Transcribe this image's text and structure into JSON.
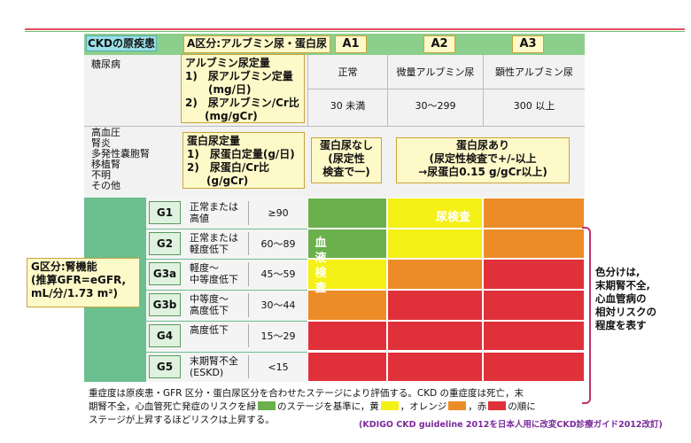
{
  "header": {
    "cause_label": "CKDの原疾患",
    "a_category_label": "A区分:アルブミン尿・蛋白尿",
    "a_keys": [
      "A1",
      "A2",
      "A3"
    ]
  },
  "diabetes": {
    "disease": "糖尿病",
    "box": {
      "title": "アルブミン尿定量",
      "line1": "1)　尿アルブミン定量",
      "line1b": "(mg/日)",
      "line2": "2)　尿アルブミン/Cr比",
      "line2b": "(mg/gCr)"
    },
    "a_labels": [
      "正常",
      "微量アルブミン尿",
      "顕性アルブミン尿"
    ],
    "a_values": [
      "30 未満",
      "30〜299",
      "300 以上"
    ]
  },
  "other": {
    "diseases": [
      "高血圧",
      "腎炎",
      "多発性嚢胞腎",
      "移植腎",
      "不明",
      "その他"
    ],
    "box": {
      "title": "蛋白尿定量",
      "line1": "1)　尿蛋白定量(g/日)",
      "line2": "2)　尿蛋白/Cr比",
      "line2b": "(g/gCr)"
    },
    "none_box": {
      "line1": "蛋白尿なし",
      "line2": "(尿定性",
      "line3": "検査で一)"
    },
    "present_box": {
      "line1": "蛋白尿あり",
      "line2": "(尿定性検査で+/-以上",
      "line3": "→尿蛋白0.15 g/gCr以上)"
    }
  },
  "gfr_label": {
    "line1": "G区分:腎機能",
    "line2": "(推算GFR=eGFR,",
    "line3": "mL/分/1.73 m²)"
  },
  "g_rows": [
    {
      "key": "G1",
      "desc1": "正常または",
      "desc2": "高値",
      "range": "≥90",
      "colors": [
        "green",
        "yellow",
        "orange"
      ]
    },
    {
      "key": "G2",
      "desc1": "正常または",
      "desc2": "軽度低下",
      "range": "60〜89",
      "colors": [
        "green",
        "yellow",
        "orange"
      ]
    },
    {
      "key": "G3a",
      "desc1": "軽度〜",
      "desc2": "中等度低下",
      "range": "45〜59",
      "colors": [
        "yellow",
        "orange",
        "red"
      ]
    },
    {
      "key": "G3b",
      "desc1": "中等度〜",
      "desc2": "高度低下",
      "range": "30〜44",
      "colors": [
        "orange",
        "red",
        "red"
      ]
    },
    {
      "key": "G4",
      "desc1": "高度低下",
      "desc2": "",
      "range": "15〜29",
      "colors": [
        "red",
        "red",
        "red"
      ]
    },
    {
      "key": "G5",
      "desc1": "末期腎不全",
      "desc2": "(ESKD)",
      "range": "<15",
      "colors": [
        "red",
        "red",
        "red"
      ]
    }
  ],
  "overlay": {
    "urine_test": "尿検査",
    "blood_test_chars": [
      "血",
      "液",
      "検",
      "査"
    ]
  },
  "risk_note": {
    "line1": "色分けは,",
    "line2": "末期腎不全,",
    "line3": "心血管病の",
    "line4": "相対リスクの",
    "line5": "程度を表す"
  },
  "footer": {
    "line1": "重症度は原疾患・GFR 区分・蛋白尿区分を合わせたステージにより評価する。CKD の重症度は死亡，末",
    "line2a": "期腎不全，心血管死亡発症のリスクを緑",
    "line2b": "のステージを基準に，黄",
    "line2c": "，オレンジ",
    "line2d": "，赤",
    "line2e": "の順に",
    "line3": "ステージが上昇するほどリスクは上昇する。",
    "source": "(KDIGO CKD guideline 2012を日本人用に改変CKD診療ガイド2012改訂)"
  },
  "colors": {
    "green": "#6ab04c",
    "yellow": "#f5f016",
    "orange": "#eb8c26",
    "red": "#e0303a"
  }
}
